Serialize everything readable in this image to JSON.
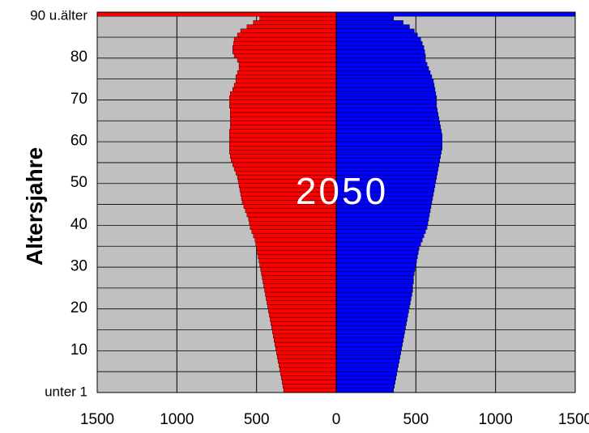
{
  "chart_data": {
    "type": "bar",
    "orientation": "horizontal",
    "layout": "population-pyramid",
    "title": "",
    "watermark": "2050",
    "ylabel": "Altersjahre",
    "xlabel": "",
    "xlim": [
      -1500,
      1500
    ],
    "ylim": [
      0,
      90
    ],
    "grid": true,
    "legend": "none",
    "x_tick_labels": [
      "1500",
      "1000",
      "500",
      "0",
      "500",
      "1000",
      "1500"
    ],
    "x_tick_values": [
      -1500,
      -1000,
      -500,
      0,
      500,
      1000,
      1500
    ],
    "y_tick_labels": [
      "unter  1",
      "10",
      "20",
      "30",
      "40",
      "50",
      "60",
      "70",
      "80",
      "90  u.älter"
    ],
    "y_tick_values": [
      0,
      10,
      20,
      30,
      40,
      50,
      60,
      70,
      80,
      90
    ],
    "ages": [
      0,
      1,
      2,
      3,
      4,
      5,
      6,
      7,
      8,
      9,
      10,
      11,
      12,
      13,
      14,
      15,
      16,
      17,
      18,
      19,
      20,
      21,
      22,
      23,
      24,
      25,
      26,
      27,
      28,
      29,
      30,
      31,
      32,
      33,
      34,
      35,
      36,
      37,
      38,
      39,
      40,
      41,
      42,
      43,
      44,
      45,
      46,
      47,
      48,
      49,
      50,
      51,
      52,
      53,
      54,
      55,
      56,
      57,
      58,
      59,
      60,
      61,
      62,
      63,
      64,
      65,
      66,
      67,
      68,
      69,
      70,
      71,
      72,
      73,
      74,
      75,
      76,
      77,
      78,
      79,
      80,
      81,
      82,
      83,
      84,
      85,
      86,
      87,
      88,
      89,
      90
    ],
    "series": [
      {
        "side": "left",
        "color": "#ff0000",
        "values": [
          330,
          335,
          340,
          345,
          350,
          355,
          360,
          365,
          370,
          375,
          380,
          385,
          390,
          395,
          400,
          405,
          410,
          415,
          420,
          425,
          430,
          435,
          440,
          445,
          450,
          455,
          460,
          465,
          470,
          475,
          480,
          485,
          490,
          495,
          500,
          505,
          510,
          520,
          530,
          540,
          545,
          550,
          560,
          570,
          580,
          590,
          595,
          600,
          605,
          610,
          615,
          620,
          630,
          640,
          650,
          660,
          665,
          670,
          670,
          670,
          670,
          670,
          670,
          665,
          665,
          665,
          665,
          665,
          670,
          670,
          670,
          665,
          650,
          640,
          630,
          630,
          620,
          610,
          610,
          620,
          640,
          650,
          650,
          645,
          640,
          620,
          600,
          560,
          520,
          480,
          1500
        ]
      },
      {
        "side": "right",
        "color": "#0000ff",
        "values": [
          360,
          365,
          370,
          375,
          380,
          385,
          390,
          395,
          400,
          405,
          410,
          415,
          420,
          425,
          430,
          435,
          440,
          445,
          450,
          455,
          460,
          465,
          470,
          475,
          480,
          480,
          485,
          485,
          490,
          495,
          500,
          505,
          510,
          515,
          520,
          530,
          540,
          550,
          560,
          570,
          575,
          580,
          585,
          590,
          595,
          600,
          605,
          610,
          615,
          620,
          625,
          630,
          635,
          640,
          645,
          650,
          655,
          660,
          665,
          665,
          665,
          665,
          660,
          655,
          650,
          645,
          640,
          635,
          630,
          630,
          630,
          625,
          620,
          615,
          610,
          600,
          590,
          580,
          570,
          560,
          560,
          555,
          550,
          540,
          530,
          510,
          490,
          460,
          420,
          360,
          1500
        ]
      }
    ]
  }
}
